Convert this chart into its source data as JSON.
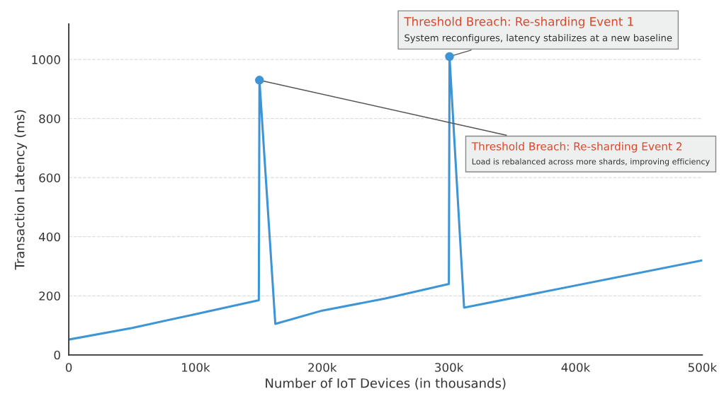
{
  "chart_data": {
    "type": "line",
    "xlabel": "Number of IoT Devices (in thousands)",
    "ylabel": "Transaction Latency (ms)",
    "x": [
      0,
      50000,
      100000,
      150000,
      150500,
      163000,
      200000,
      250000,
      300000,
      300500,
      312000,
      500000
    ],
    "series": [
      {
        "color": "#3d95d6",
        "values": [
          52,
          91,
          138,
          185,
          930,
          105,
          150,
          191,
          240,
          1010,
          160,
          320
        ]
      }
    ],
    "xlim": [
      0,
      500000
    ],
    "ylim": [
      0,
      1120
    ],
    "xticks": [
      0,
      {
        "value": 100000,
        "label": "100k"
      },
      {
        "value": 200000,
        "label": "200k"
      },
      {
        "value": 300000,
        "label": "300k"
      },
      {
        "value": 400000,
        "label": "400k"
      },
      {
        "value": 500000,
        "label": "500k"
      }
    ],
    "yticks": [
      0,
      200,
      400,
      600,
      800,
      1000
    ],
    "grid": "y",
    "marker": "none",
    "line_style": "solid",
    "annotations": [
      {
        "text": "Threshold Breach: Re-sharding Event 1\nSystem reconfigures, latency stabilizes at a new baseline",
        "x": 300500,
        "y": 1010
      },
      {
        "text": "Threshold Breach: Re-sharding Event 2\nLoad is rebalanced across more shards, improving efficiency",
        "x": 150500,
        "y": 930
      }
    ]
  }
}
